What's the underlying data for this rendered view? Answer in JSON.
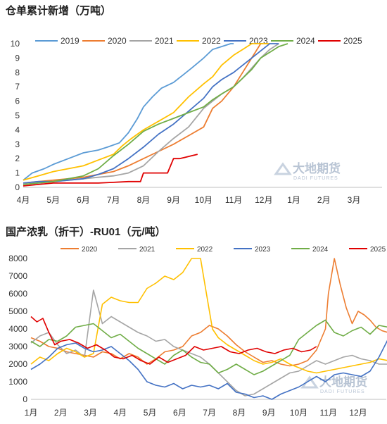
{
  "chart_data": [
    {
      "type": "line",
      "title": "仓单累计新增（万吨）",
      "categories": [
        "4月",
        "5月",
        "6月",
        "7月",
        "8月",
        "9月",
        "10月",
        "11月",
        "12月",
        "1月",
        "2月",
        "3月"
      ],
      "ylim": [
        0,
        10
      ],
      "yticks": [
        "0",
        "1",
        "2",
        "3",
        "4",
        "5",
        "6",
        "7",
        "8",
        "9",
        "10"
      ],
      "legend": "top",
      "series": [
        {
          "name": "2019",
          "color": "#5b9bd5",
          "x": [
            0,
            0.3,
            0.7,
            1.0,
            1.5,
            2.0,
            2.5,
            2.8,
            3.2,
            3.5,
            3.8,
            4.0,
            4.3,
            4.6,
            5.0,
            5.3,
            5.6,
            6.0,
            6.3,
            6.6,
            6.9,
            7.0
          ],
          "y": [
            0.5,
            1.0,
            1.3,
            1.6,
            2.0,
            2.4,
            2.6,
            2.8,
            3.1,
            3.8,
            4.8,
            5.6,
            6.3,
            6.9,
            7.3,
            7.8,
            8.3,
            9.0,
            9.6,
            9.8,
            10.0,
            10.0
          ]
        },
        {
          "name": "2020",
          "color": "#ed7d31",
          "x": [
            0,
            0.5,
            1.0,
            1.5,
            2.0,
            2.5,
            3.0,
            3.5,
            4.0,
            4.5,
            5.0,
            5.5,
            6.0,
            6.3,
            6.6,
            7.0,
            7.3,
            7.6,
            7.9
          ],
          "y": [
            0.3,
            0.4,
            0.5,
            0.6,
            0.7,
            0.9,
            1.1,
            1.5,
            2.0,
            2.5,
            3.0,
            3.6,
            4.2,
            5.5,
            6.0,
            7.0,
            8.0,
            9.0,
            10.0
          ]
        },
        {
          "name": "2021",
          "color": "#a5a5a5",
          "x": [
            0,
            0.5,
            1.0,
            1.5,
            2.0,
            2.5,
            3.0,
            3.5,
            4.0,
            4.5,
            5.0,
            5.5,
            6.0,
            6.3,
            6.6,
            7.0,
            7.3,
            7.6,
            7.9,
            8.2,
            8.5
          ],
          "y": [
            0.2,
            0.3,
            0.4,
            0.5,
            0.6,
            0.7,
            0.8,
            1.0,
            1.5,
            2.5,
            3.4,
            4.2,
            5.5,
            6.0,
            6.5,
            7.0,
            7.6,
            8.3,
            9.0,
            9.6,
            10.0
          ]
        },
        {
          "name": "2022",
          "color": "#ffc000",
          "x": [
            0,
            0.5,
            1.0,
            1.5,
            2.0,
            2.5,
            3.0,
            3.3,
            3.6,
            4.0,
            4.5,
            5.0,
            5.5,
            6.0,
            6.3,
            6.6,
            7.0,
            7.3,
            7.6,
            7.9,
            8.2
          ],
          "y": [
            0.5,
            0.8,
            1.1,
            1.3,
            1.5,
            1.9,
            2.3,
            2.9,
            3.4,
            4.0,
            4.6,
            5.2,
            6.3,
            7.2,
            7.7,
            8.5,
            9.2,
            9.6,
            10.0,
            10.0,
            10.0
          ]
        },
        {
          "name": "2023",
          "color": "#4472c4",
          "x": [
            0,
            0.5,
            1.0,
            1.5,
            2.0,
            2.5,
            3.0,
            3.5,
            4.0,
            4.5,
            5.0,
            5.5,
            6.0,
            6.3,
            6.6,
            7.0,
            7.3,
            7.6,
            7.9,
            8.2,
            8.5
          ],
          "y": [
            0.3,
            0.4,
            0.4,
            0.5,
            0.6,
            0.9,
            1.3,
            2.0,
            2.8,
            3.7,
            4.4,
            5.3,
            6.2,
            7.0,
            7.5,
            8.0,
            8.5,
            9.0,
            9.5,
            10.0,
            10.0
          ]
        },
        {
          "name": "2024",
          "color": "#70ad47",
          "x": [
            0,
            0.5,
            1.0,
            1.5,
            2.0,
            2.5,
            3.0,
            3.5,
            4.0,
            4.5,
            5.0,
            5.5,
            6.0,
            6.3,
            6.6,
            7.0,
            7.3,
            7.6,
            7.9,
            8.2,
            8.5,
            8.8
          ],
          "y": [
            0.2,
            0.3,
            0.4,
            0.6,
            0.8,
            1.3,
            2.2,
            3.0,
            3.9,
            4.4,
            4.8,
            5.2,
            5.6,
            6.1,
            6.5,
            7.0,
            7.6,
            8.2,
            9.0,
            9.4,
            9.8,
            10.0
          ]
        },
        {
          "name": "2025",
          "color": "#e00000",
          "x": [
            0,
            0.5,
            1.0,
            1.5,
            2.0,
            2.5,
            3.0,
            3.5,
            3.9,
            4.0,
            4.5,
            4.8,
            5.0,
            5.2,
            5.4,
            5.6,
            5.8
          ],
          "y": [
            0.1,
            0.2,
            0.3,
            0.3,
            0.3,
            0.3,
            0.35,
            0.4,
            0.4,
            1.0,
            1.0,
            1.0,
            2.0,
            2.0,
            2.1,
            2.2,
            2.3
          ]
        }
      ]
    },
    {
      "type": "line",
      "title": "国产浓乳（折干）-RU01（元/吨）",
      "categories": [
        "1月",
        "2月",
        "3月",
        "4月",
        "5月",
        "6月",
        "7月",
        "8月",
        "9月",
        "10月",
        "11月",
        "12月"
      ],
      "ylim": [
        0,
        8000
      ],
      "yticks": [
        "0",
        "1000",
        "2000",
        "3000",
        "4000",
        "5000",
        "6000",
        "7000",
        "8000"
      ],
      "legend": "top",
      "series": [
        {
          "name": "2020",
          "color": "#ed7d31",
          "x": [
            0,
            0.3,
            0.6,
            0.9,
            1.2,
            1.5,
            1.8,
            2.1,
            2.4,
            2.7,
            3.0,
            3.3,
            3.6,
            3.9,
            4.2,
            4.5,
            4.8,
            5.1,
            5.4,
            5.7,
            6.0,
            6.3,
            6.6,
            6.9,
            7.2,
            7.5,
            7.8,
            8.1,
            8.4,
            8.7,
            9.0,
            9.3,
            9.6,
            9.9,
            10.0,
            10.2,
            10.4,
            10.6,
            10.8,
            11.0,
            11.2,
            11.4,
            11.6,
            11.8,
            12.0
          ],
          "y": [
            3500,
            3300,
            3000,
            2900,
            2700,
            2600,
            2500,
            2400,
            2700,
            2600,
            2300,
            2600,
            2400,
            2000,
            2300,
            2700,
            2800,
            3000,
            3600,
            3800,
            4200,
            4000,
            3600,
            3100,
            2700,
            2400,
            2100,
            2200,
            2000,
            1900,
            2000,
            2200,
            2800,
            4000,
            6000,
            8000,
            6500,
            5200,
            4300,
            5000,
            4800,
            4500,
            4100,
            3900,
            3800
          ]
        },
        {
          "name": "2021",
          "color": "#a5a5a5",
          "x": [
            0,
            0.3,
            0.6,
            0.9,
            1.2,
            1.5,
            1.8,
            2.1,
            2.4,
            2.7,
            3.0,
            3.3,
            3.6,
            3.9,
            4.2,
            4.5,
            4.8,
            5.1,
            5.4,
            5.7,
            6.0,
            6.3,
            6.6,
            6.9,
            7.2,
            7.5,
            7.8,
            8.1,
            8.4,
            8.7,
            9.0,
            9.3,
            9.6,
            9.9,
            10.2,
            10.5,
            10.8,
            11.1,
            11.4,
            11.7,
            12.0
          ],
          "y": [
            3200,
            3600,
            3800,
            3100,
            2600,
            2800,
            2400,
            6200,
            4300,
            4700,
            4400,
            4100,
            3800,
            3600,
            3300,
            3400,
            3000,
            2800,
            2600,
            2400,
            2000,
            1500,
            1000,
            500,
            200,
            300,
            600,
            900,
            1200,
            1500,
            1600,
            1900,
            2200,
            2000,
            2200,
            2400,
            2500,
            2300,
            2200,
            2000,
            2000
          ]
        },
        {
          "name": "2022",
          "color": "#ffc000",
          "x": [
            0,
            0.3,
            0.6,
            0.9,
            1.2,
            1.5,
            1.8,
            2.1,
            2.4,
            2.7,
            3.0,
            3.3,
            3.6,
            3.9,
            4.2,
            4.5,
            4.8,
            5.1,
            5.4,
            5.7,
            5.9,
            6.1,
            6.3,
            6.6,
            6.9,
            7.2,
            7.5,
            7.8,
            8.1,
            8.4,
            8.7,
            9.0,
            9.3,
            9.6,
            9.9,
            10.2,
            10.5,
            10.8,
            11.1,
            11.4,
            11.7,
            12.0
          ],
          "y": [
            2000,
            2400,
            2200,
            2600,
            2900,
            2700,
            2400,
            2600,
            5400,
            5800,
            5600,
            5500,
            5500,
            6300,
            6600,
            7000,
            6800,
            7200,
            8000,
            8000,
            6000,
            4000,
            3500,
            3100,
            2800,
            2500,
            2200,
            2000,
            2100,
            2300,
            2000,
            1800,
            1600,
            1500,
            1600,
            1700,
            1800,
            1900,
            2000,
            2100,
            2300,
            2200
          ]
        },
        {
          "name": "2023",
          "color": "#4472c4",
          "x": [
            0,
            0.3,
            0.6,
            0.9,
            1.2,
            1.5,
            1.8,
            2.1,
            2.4,
            2.7,
            3.0,
            3.3,
            3.6,
            3.9,
            4.2,
            4.5,
            4.8,
            5.1,
            5.4,
            5.7,
            6.0,
            6.3,
            6.6,
            6.9,
            7.2,
            7.5,
            7.8,
            8.1,
            8.4,
            8.7,
            9.0,
            9.3,
            9.6,
            9.9,
            10.2,
            10.5,
            10.8,
            11.1,
            11.4,
            11.7,
            12.0
          ],
          "y": [
            1700,
            2000,
            2400,
            2900,
            3100,
            3200,
            2900,
            2700,
            2800,
            3000,
            2600,
            2200,
            1700,
            1000,
            800,
            700,
            900,
            600,
            800,
            700,
            800,
            600,
            900,
            400,
            300,
            100,
            200,
            0,
            300,
            500,
            700,
            1000,
            1300,
            1000,
            1400,
            1500,
            1400,
            1300,
            1600,
            2400,
            3400
          ]
        },
        {
          "name": "2024",
          "color": "#70ad47",
          "x": [
            0,
            0.3,
            0.6,
            0.9,
            1.2,
            1.5,
            1.8,
            2.1,
            2.4,
            2.7,
            3.0,
            3.3,
            3.6,
            3.9,
            4.2,
            4.5,
            4.8,
            5.1,
            5.4,
            5.7,
            6.0,
            6.3,
            6.6,
            6.9,
            7.2,
            7.5,
            7.8,
            8.1,
            8.4,
            8.7,
            9.0,
            9.3,
            9.6,
            9.9,
            10.2,
            10.5,
            10.8,
            11.1,
            11.4,
            11.7,
            12.0
          ],
          "y": [
            3300,
            3000,
            3400,
            3300,
            3600,
            4100,
            4200,
            4300,
            3900,
            3500,
            3700,
            3300,
            2900,
            2600,
            2300,
            2000,
            2500,
            2800,
            2400,
            2100,
            2000,
            1500,
            1700,
            2000,
            1700,
            1400,
            1600,
            1900,
            2200,
            2500,
            3400,
            3800,
            4200,
            4500,
            3800,
            3600,
            3900,
            4100,
            3700,
            4200,
            4100
          ]
        },
        {
          "name": "2025",
          "color": "#e00000",
          "x": [
            0,
            0.2,
            0.4,
            0.6,
            0.8,
            1.0,
            1.3,
            1.6,
            1.9,
            2.2,
            2.5,
            2.8,
            3.1,
            3.4,
            3.7,
            4.0,
            4.3,
            4.6,
            4.9,
            5.2,
            5.5,
            5.8,
            6.1,
            6.4,
            6.7,
            7.0,
            7.3,
            7.6,
            7.9,
            8.2,
            8.5,
            8.8,
            9.1,
            9.4,
            9.6
          ],
          "y": [
            4700,
            4400,
            4600,
            3800,
            3100,
            3300,
            3400,
            3200,
            2900,
            3100,
            2800,
            2400,
            2300,
            2500,
            2200,
            2000,
            2400,
            2100,
            2300,
            2500,
            3000,
            2800,
            2900,
            3000,
            2700,
            2600,
            2800,
            2900,
            2700,
            2600,
            2800,
            2900,
            2700,
            2800,
            3000
          ]
        }
      ]
    }
  ],
  "watermark": {
    "text": "大地期货",
    "sub": "DADI FUTURES"
  }
}
